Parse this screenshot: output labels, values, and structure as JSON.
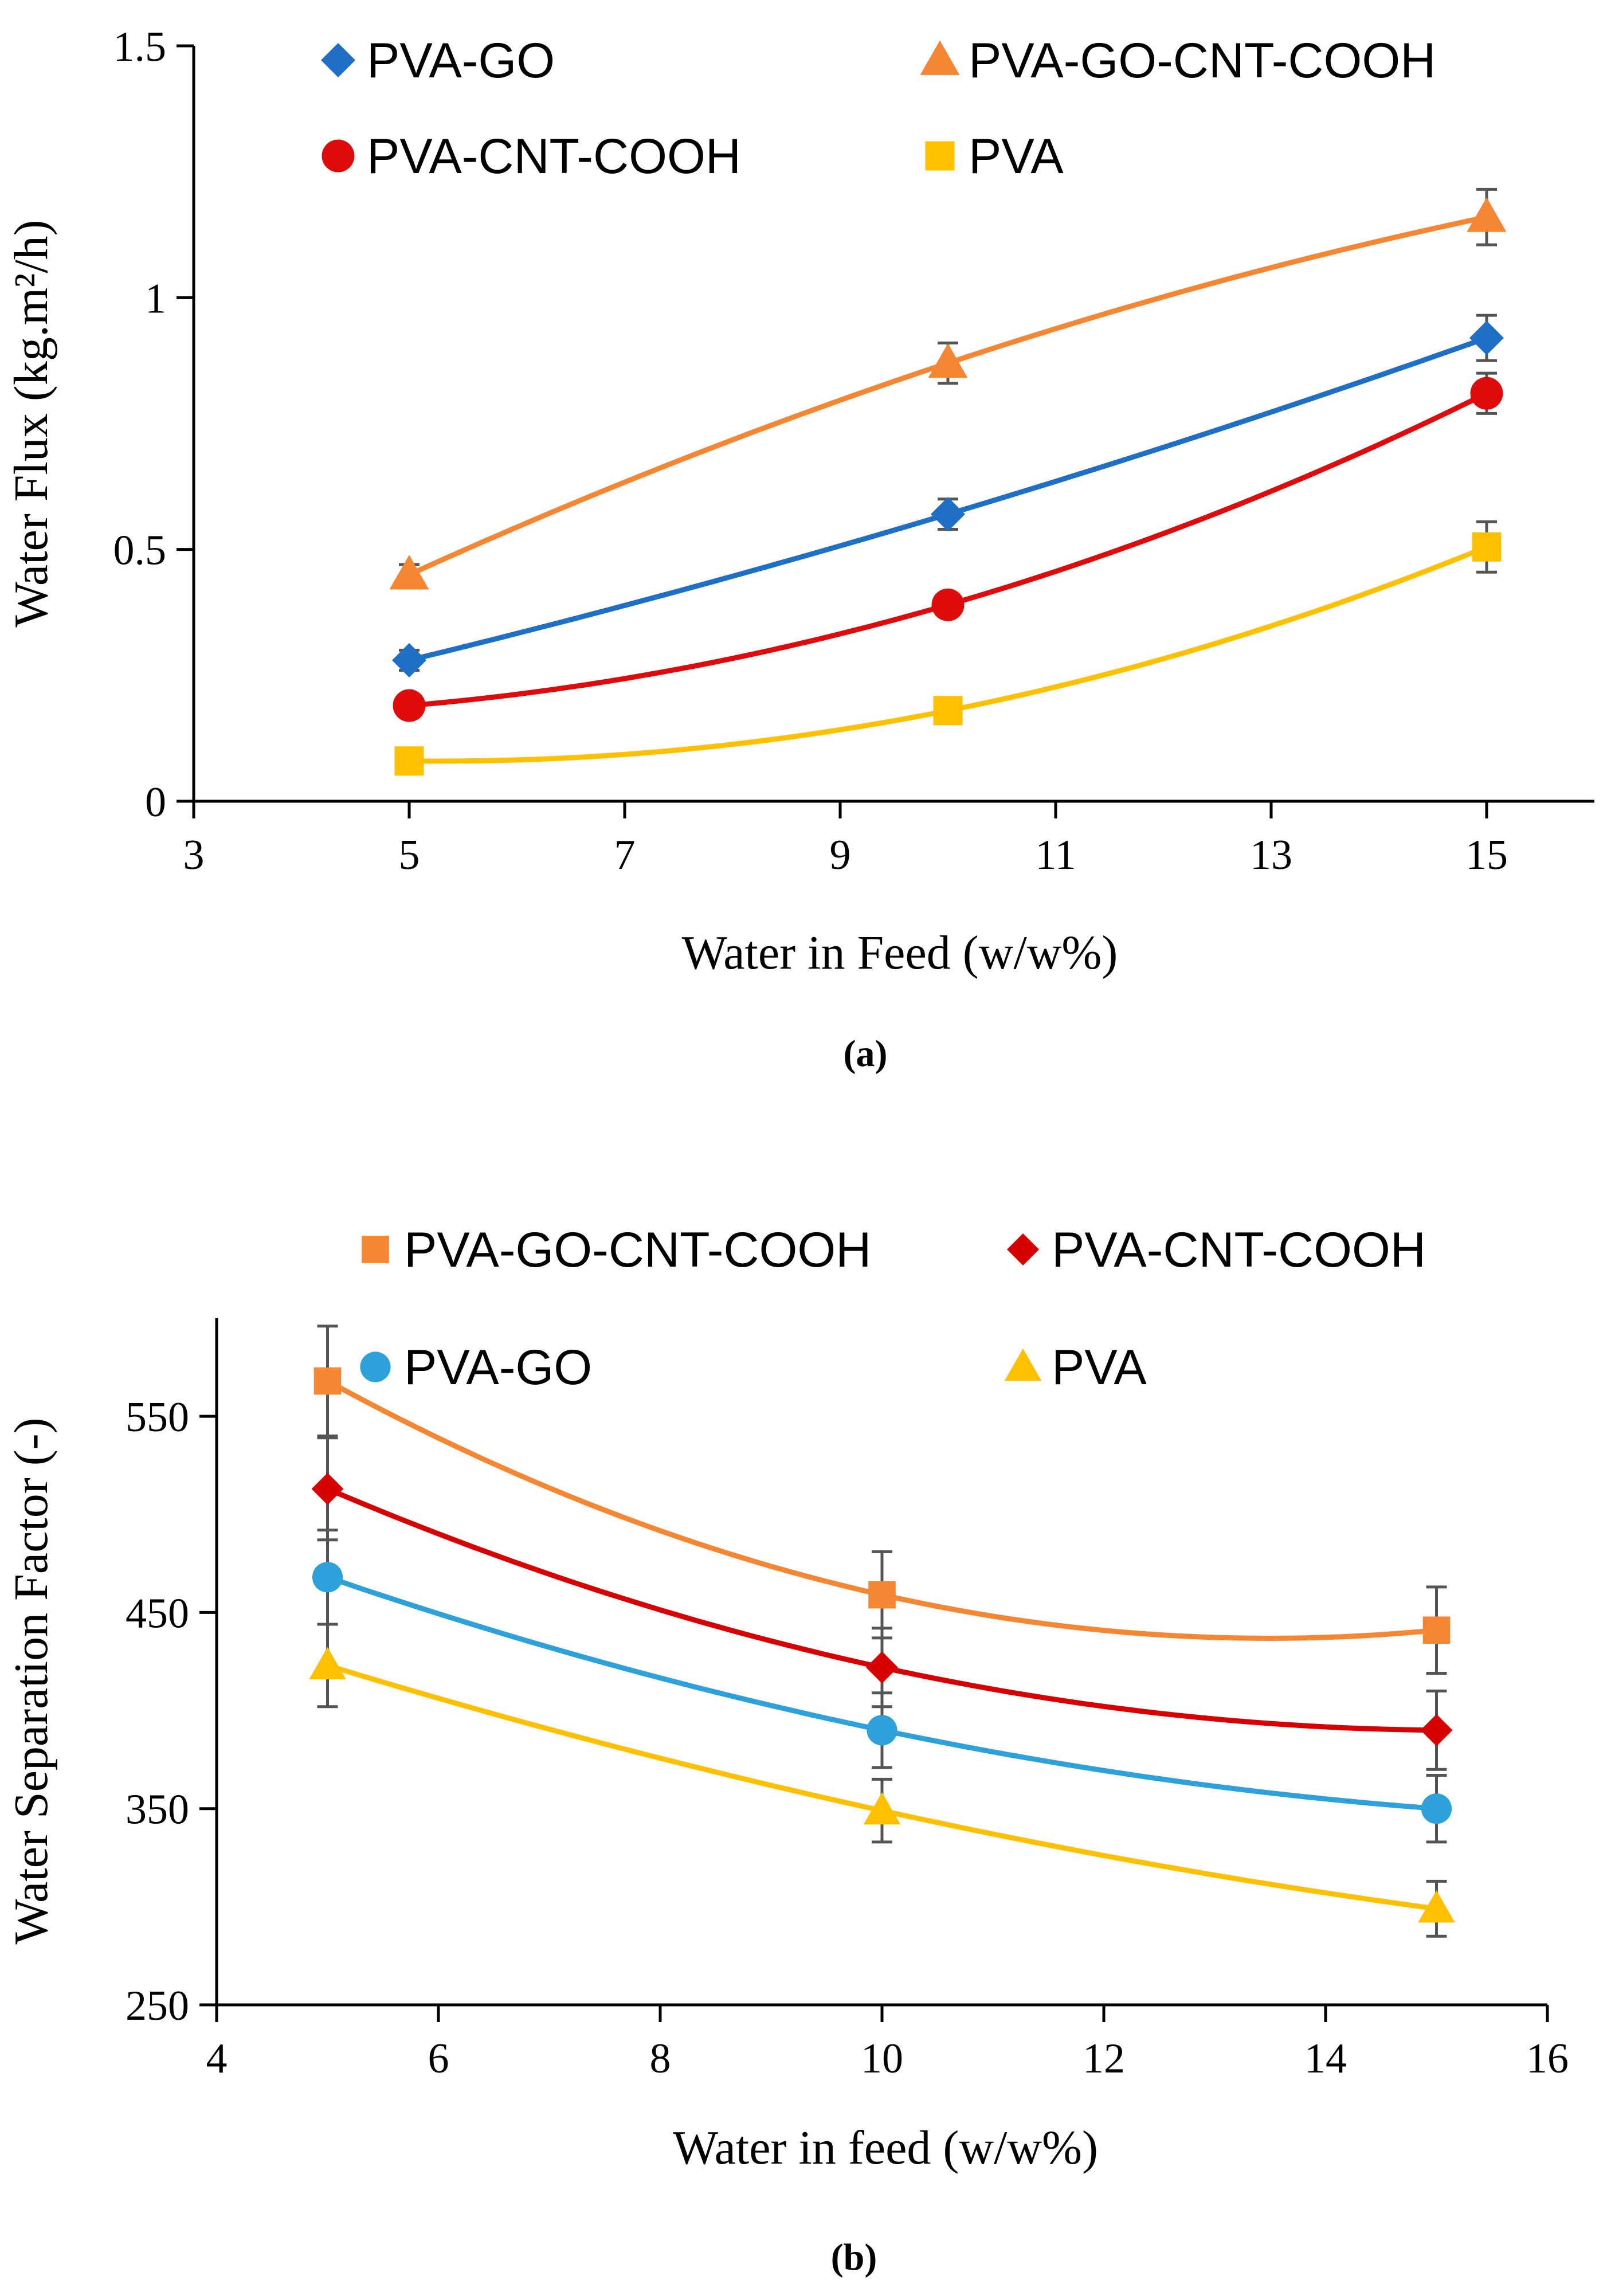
{
  "chart_data": [
    {
      "type": "line",
      "panel_label": "(a)",
      "xlabel": "Water in Feed (w/w%)",
      "ylabel": "Water Flux (kg.m²/h)",
      "xlim": [
        3,
        16
      ],
      "ylim": [
        0,
        1.5
      ],
      "xticks": [
        3,
        5,
        7,
        9,
        11,
        13,
        15
      ],
      "yticks": [
        0,
        0.5,
        1,
        1.5
      ],
      "xtick_labels": [
        "3",
        "5",
        "7",
        "9",
        "11",
        "13",
        "15"
      ],
      "ytick_labels": [
        "0",
        "0.5",
        "1",
        "1.5"
      ],
      "legend_position": "top",
      "x": [
        5,
        10,
        15
      ],
      "series": [
        {
          "name": "PVA-GO",
          "values": [
            0.28,
            0.57,
            0.92
          ],
          "errors": [
            0.02,
            0.03,
            0.045
          ],
          "color": "#1f6fc6",
          "marker": "diamond"
        },
        {
          "name": "PVA-GO-CNT-COOH",
          "values": [
            0.45,
            0.87,
            1.16
          ],
          "errors": [
            0.02,
            0.04,
            0.055
          ],
          "color": "#f58634",
          "marker": "triangle"
        },
        {
          "name": "PVA-CNT-COOH",
          "values": [
            0.19,
            0.39,
            0.81
          ],
          "errors": [
            0.015,
            0.02,
            0.04
          ],
          "color": "#dd0b0b",
          "marker": "circle"
        },
        {
          "name": "PVA",
          "values": [
            0.08,
            0.18,
            0.505
          ],
          "errors": [
            0.01,
            0.015,
            0.05
          ],
          "color": "#ffc000",
          "marker": "square"
        }
      ]
    },
    {
      "type": "line",
      "panel_label": "(b)",
      "xlabel": "Water in feed (w/w%)",
      "ylabel": "Water Separation Factor (-)",
      "xlim": [
        4,
        16
      ],
      "ylim": [
        250,
        600
      ],
      "xticks": [
        4,
        6,
        8,
        10,
        12,
        14,
        16
      ],
      "yticks": [
        250,
        350,
        450,
        550
      ],
      "xtick_labels": [
        "4",
        "6",
        "8",
        "10",
        "12",
        "14",
        "16"
      ],
      "ytick_labels": [
        "250",
        "350",
        "450",
        "550"
      ],
      "legend_position": "top",
      "x": [
        5,
        10,
        15
      ],
      "series": [
        {
          "name": "PVA-GO-CNT-COOH",
          "values": [
            568,
            459,
            441
          ],
          "errors": [
            28,
            22,
            22
          ],
          "color": "#f58634",
          "marker": "square"
        },
        {
          "name": "PVA-CNT-COOH",
          "values": [
            513,
            422,
            390
          ],
          "errors": [
            26,
            20,
            20
          ],
          "color": "#d60000",
          "marker": "diamond"
        },
        {
          "name": "PVA-GO",
          "values": [
            468,
            390,
            350
          ],
          "errors": [
            24,
            19,
            17
          ],
          "color": "#2ea0da",
          "marker": "circle"
        },
        {
          "name": "PVA",
          "values": [
            423,
            349,
            299
          ],
          "errors": [
            21,
            16,
            14
          ],
          "color": "#ffc000",
          "marker": "triangle"
        }
      ]
    }
  ]
}
